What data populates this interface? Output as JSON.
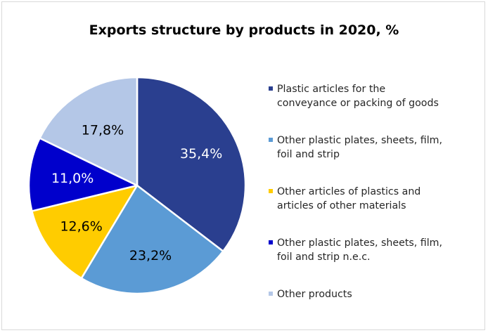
{
  "chart_data": {
    "type": "pie",
    "title": "Exports structure by products in 2020, %",
    "labels": [
      "Plastic articles for the conveyance or packing of goods",
      "Other plastic plates, sheets, film, foil and strip",
      "Other articles of plastics and articles of other materials",
      "Other plastic plates, sheets, film, foil and strip n.e.c.",
      "Other products"
    ],
    "values": [
      35.4,
      23.2,
      12.6,
      11.0,
      17.8
    ],
    "value_labels": [
      "35,4%",
      "23,2%",
      "12,6%",
      "11,0%",
      "17,8%"
    ],
    "colors": [
      "#2a3f8f",
      "#5b9bd5",
      "#ffcc00",
      "#0000cc",
      "#b4c7e7"
    ],
    "label_colors": [
      "#ffffff",
      "#000000",
      "#000000",
      "#ffffff",
      "#000000"
    ],
    "legend_lines": [
      [
        "Plastic articles for the",
        "conveyance or packing of goods"
      ],
      [
        "Other plastic plates, sheets, film,",
        "foil and strip"
      ],
      [
        "Other articles of plastics and",
        "articles of other materials"
      ],
      [
        "Other plastic plates, sheets, film,",
        "foil and strip n.e.c."
      ],
      [
        "Other products"
      ]
    ],
    "legend_position": "right"
  }
}
